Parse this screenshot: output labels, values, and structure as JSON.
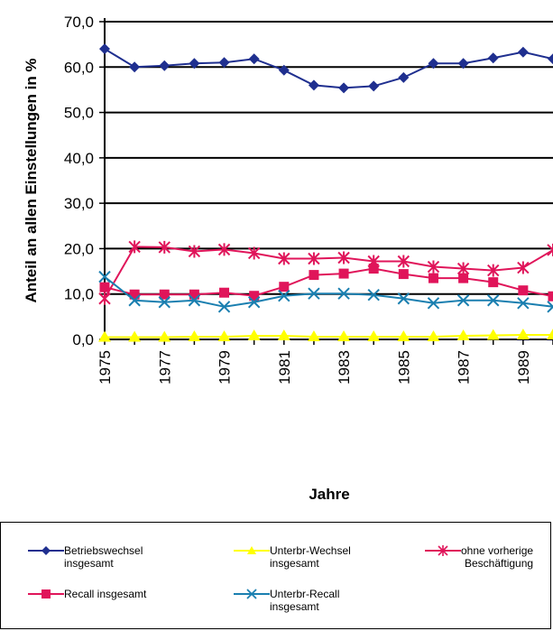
{
  "chart_data": {
    "type": "line",
    "title": "",
    "ylabel": "Anteil an allen Einstellungen in %",
    "xlabel": "Jahre",
    "ylim": [
      0,
      70
    ],
    "yticks": [
      "0,0",
      "10,0",
      "20,0",
      "30,0",
      "40,0",
      "50,0",
      "60,0",
      "70,0"
    ],
    "x": [
      1975,
      1976,
      1977,
      1978,
      1979,
      1980,
      1981,
      1982,
      1983,
      1984,
      1985,
      1986,
      1987,
      1988,
      1989,
      1990
    ],
    "xtick_labels": [
      "1975",
      "1977",
      "1979",
      "1981",
      "1983",
      "1985",
      "1987",
      "1989"
    ],
    "grid": "horizontal",
    "legend_position": "bottom",
    "series": [
      {
        "name": "Betriebswechsel insgesamt",
        "color": "#1f2f8f",
        "marker": "diamond",
        "values": [
          64.0,
          60.0,
          60.3,
          60.8,
          61.0,
          61.8,
          59.3,
          56.0,
          55.4,
          55.8,
          57.7,
          60.8,
          60.8,
          62.0,
          63.3,
          61.8
        ]
      },
      {
        "name": "Unterbr-Wechsel insgesamt",
        "color": "#ffff00",
        "marker": "triangle",
        "values": [
          0.5,
          0.5,
          0.5,
          0.6,
          0.6,
          0.8,
          0.8,
          0.6,
          0.6,
          0.6,
          0.6,
          0.6,
          0.8,
          0.9,
          1.0,
          1.0
        ]
      },
      {
        "name": "ohne vorherige Beschäftigung",
        "color": "#e0155a",
        "marker": "asterisk",
        "values": [
          9.0,
          20.4,
          20.3,
          19.4,
          19.8,
          19.0,
          17.8,
          17.8,
          18.0,
          17.2,
          17.2,
          16.0,
          15.6,
          15.2,
          15.8,
          19.7
        ]
      },
      {
        "name": "Recall insgesamt",
        "color": "#e0155a",
        "marker": "square",
        "values": [
          11.5,
          9.9,
          9.9,
          9.9,
          10.3,
          9.6,
          11.6,
          14.2,
          14.5,
          15.6,
          14.4,
          13.5,
          13.5,
          12.6,
          10.8,
          9.5
        ]
      },
      {
        "name": "Unterbr-Recall insgesamt",
        "color": "#1a7fb0",
        "marker": "x",
        "values": [
          13.8,
          8.6,
          8.2,
          8.6,
          7.2,
          8.2,
          9.6,
          10.1,
          10.1,
          9.8,
          9.0,
          8.0,
          8.6,
          8.6,
          8.0,
          7.2
        ]
      }
    ]
  },
  "legend": {
    "items": [
      {
        "label": "Betriebswechsel\ninsgesamt"
      },
      {
        "label": "Unterbr-Wechsel\ninsgesamt"
      },
      {
        "label": "ohne vorherige\nBeschäftigung"
      },
      {
        "label": "Recall insgesamt"
      },
      {
        "label": "Unterbr-Recall\ninsgesamt"
      }
    ]
  }
}
